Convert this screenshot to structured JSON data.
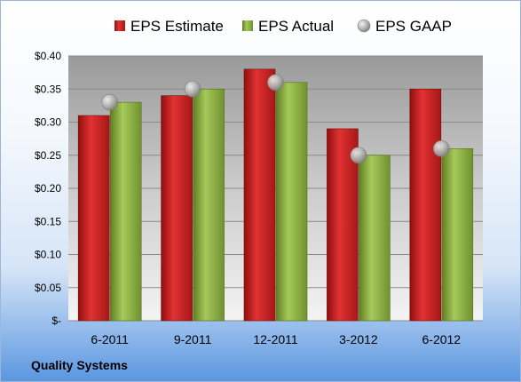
{
  "company_name": "Quality Systems",
  "chart_data": {
    "type": "bar",
    "categories": [
      "6-2011",
      "9-2011",
      "12-2011",
      "3-2012",
      "6-2012"
    ],
    "series": [
      {
        "name": "EPS Estimate",
        "type": "bar",
        "color": "#cc1f1f",
        "values": [
          0.31,
          0.34,
          0.38,
          0.29,
          0.35
        ]
      },
      {
        "name": "EPS Actual",
        "type": "bar",
        "color": "#8cb43c",
        "values": [
          0.33,
          0.35,
          0.36,
          0.25,
          0.26
        ]
      },
      {
        "name": "EPS GAAP",
        "type": "marker",
        "color": "#b4b4b4",
        "values": [
          0.33,
          0.35,
          0.36,
          0.25,
          0.26
        ]
      }
    ],
    "y_ticks": [
      "$-",
      "$0.05",
      "$0.10",
      "$0.15",
      "$0.20",
      "$0.25",
      "$0.30",
      "$0.35",
      "$0.40"
    ],
    "ylim": [
      0,
      0.4
    ],
    "grid": true,
    "legend_position": "top"
  }
}
